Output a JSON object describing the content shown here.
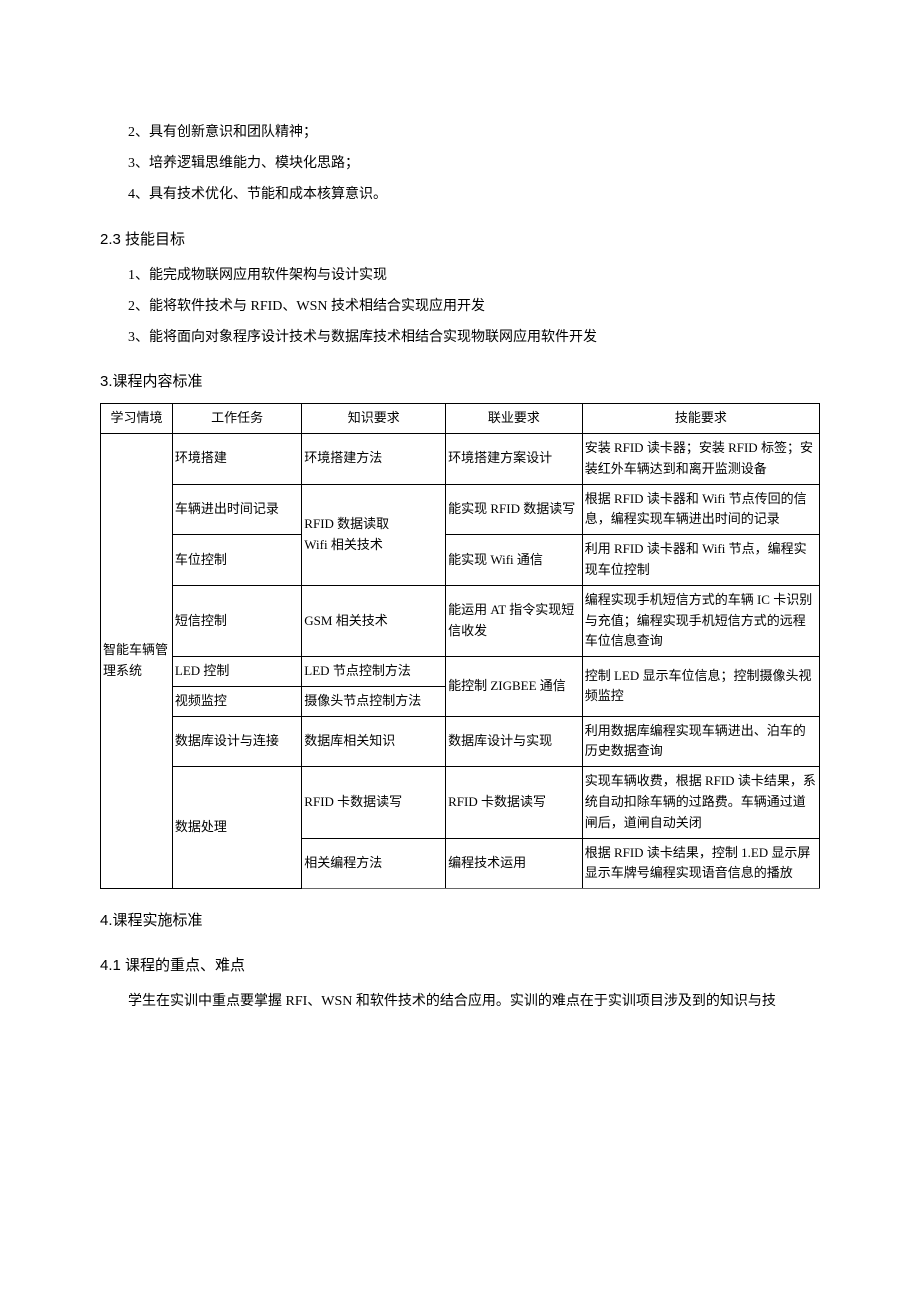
{
  "bullets_top": {
    "b2": "2、具有创新意识和团队精神；",
    "b3": "3、培养逻辑思维能力、模块化思路；",
    "b4": "4、具有技术优化、节能和成本核算意识。"
  },
  "section_2_3": {
    "title": "2.3 技能目标",
    "items": {
      "i1": "1、能完成物联网应用软件架构与设计实现",
      "i2": "2、能将软件技术与 RFID、WSN 技术相结合实现应用开发",
      "i3": "3、能将面向对象程序设计技术与数据库技术相结合实现物联网应用软件开发"
    }
  },
  "section_3": {
    "title": "3.课程内容标准",
    "table": {
      "headers": {
        "h1": "学习情境",
        "h2": "工作任务",
        "h3": "知识要求",
        "h4": "联业要求",
        "h5": "技能要求"
      },
      "context_label": "智能车辆管理系统",
      "rows": {
        "r1": {
          "task": "环境搭建",
          "knowledge": "环境搭建方法",
          "industry": "环境搭建方案设计",
          "skill": "安装 RFID 读卡器；安装 RFID 标签；安装红外车辆达到和离开监测设备"
        },
        "r2": {
          "task": "车辆进出时间记录",
          "knowledge_merged": "RFID 数据读取\nWifi 相关技术",
          "industry": "能实现 RFID 数据读写",
          "skill": "根据 RFID 读卡器和 Wifi 节点传回的信息，编程实现车辆进出时间的记录"
        },
        "r3": {
          "task": "车位控制",
          "industry": "能实现 Wifi 通信",
          "skill": "利用 RFID 读卡器和 Wifi 节点，编程实现车位控制"
        },
        "r4": {
          "task": "短信控制",
          "knowledge": "GSM 相关技术",
          "industry": "能运用 AT 指令实现短信收发",
          "skill": "编程实现手机短信方式的车辆 IC 卡识别与充值；编程实现手机短信方式的远程车位信息查询"
        },
        "r5": {
          "task": "LED 控制",
          "knowledge": "LED 节点控制方法",
          "industry_merged": "能控制 ZIGBEE 通信",
          "skill_merged": "控制 LED 显示车位信息；控制摄像头视频监控"
        },
        "r6": {
          "task": "视频监控",
          "knowledge": "摄像头节点控制方法"
        },
        "r7": {
          "task": "数据库设计与连接",
          "knowledge": "数据库相关知识",
          "industry": "数据库设计与实现",
          "skill": "利用数据库编程实现车辆进出、泊车的历史数据查询"
        },
        "r8": {
          "task_merged": "数据处理",
          "knowledge": "RFID 卡数据读写",
          "industry": "RFID 卡数据读写",
          "skill": "实现车辆收费，根据 RFID 读卡结果，系统自动扣除车辆的过路费。车辆通过道闸后，道闸自动关闭"
        },
        "r9": {
          "knowledge": "相关编程方法",
          "industry": "编程技术运用",
          "skill": "根据 RFID 读卡结果，控制 1.ED 显示屏显示车牌号编程实现语音信息的播放"
        }
      }
    }
  },
  "section_4": {
    "title": "4.课程实施标准",
    "sub_4_1": {
      "title": "4.1  课程的重点、难点",
      "body": "学生在实训中重点要掌握 RFI、WSN 和软件技术的结合应用。实训的难点在于实训项目涉及到的知识与技"
    }
  },
  "colors": {
    "text": "#000000",
    "background": "#ffffff",
    "border": "#000000"
  }
}
